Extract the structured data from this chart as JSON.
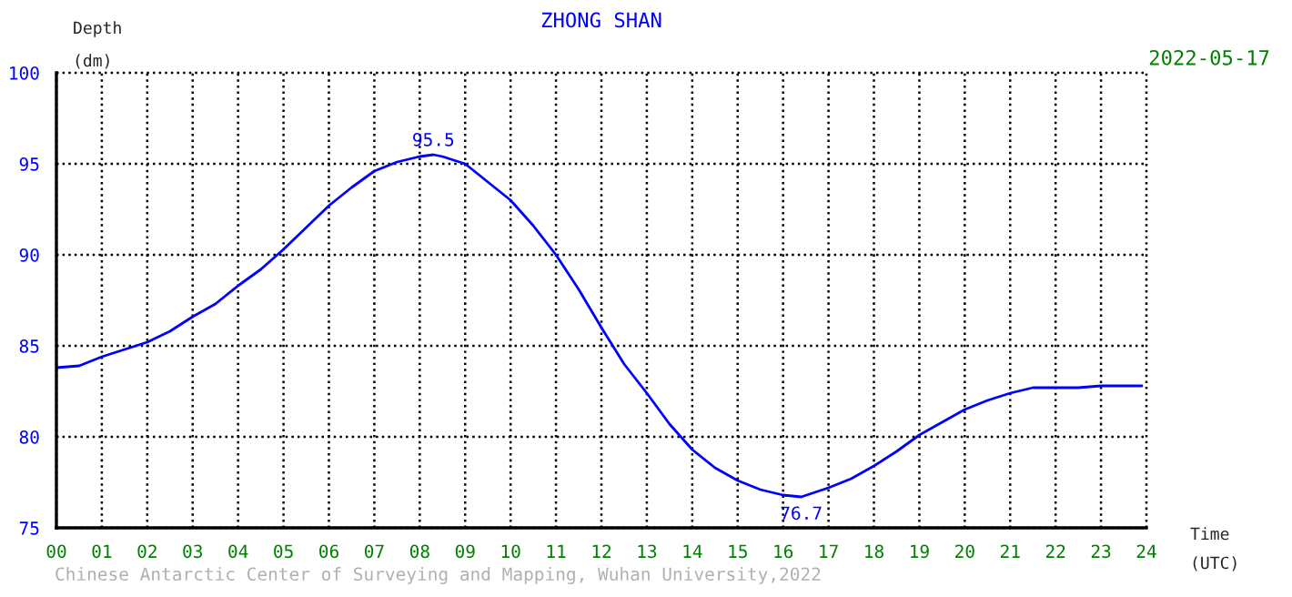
{
  "chart_data": {
    "type": "line",
    "title": "ZHONG SHAN",
    "subtitle": "2022-05-17",
    "xlabel": "Time\n(UTC)",
    "ylabel": "Depth\n(dm)",
    "x": [
      0,
      0.5,
      1,
      1.5,
      2,
      2.5,
      3,
      3.5,
      4,
      4.5,
      5,
      5.5,
      6,
      6.5,
      7,
      7.5,
      8,
      8.3,
      8.5,
      9,
      9.5,
      10,
      10.5,
      11,
      11.5,
      12,
      12.5,
      13,
      13.5,
      14,
      14.5,
      15,
      15.5,
      16,
      16.4,
      17,
      17.5,
      18,
      18.5,
      19,
      19.5,
      20,
      20.5,
      21,
      21.5,
      22,
      22.5,
      23,
      23.5,
      23.9
    ],
    "series": [
      {
        "color": "#0000ff",
        "values": [
          83.8,
          83.9,
          84.4,
          84.8,
          85.2,
          85.8,
          86.6,
          87.3,
          88.3,
          89.2,
          90.3,
          91.5,
          92.7,
          93.7,
          94.6,
          95.1,
          95.4,
          95.5,
          95.4,
          95.0,
          94.0,
          93.0,
          91.6,
          90.0,
          88.1,
          86.0,
          84.0,
          82.4,
          80.7,
          79.3,
          78.3,
          77.6,
          77.1,
          76.8,
          76.7,
          77.2,
          77.7,
          78.4,
          79.2,
          80.1,
          80.8,
          81.5,
          82.0,
          82.4,
          82.7,
          82.7,
          82.7,
          82.8,
          82.8,
          82.8
        ]
      }
    ],
    "xlim": [
      0,
      24
    ],
    "ylim": [
      75,
      100
    ],
    "xticks": [
      {
        "value": 0,
        "label": "00"
      },
      {
        "value": 1,
        "label": "01"
      },
      {
        "value": 2,
        "label": "02"
      },
      {
        "value": 3,
        "label": "03"
      },
      {
        "value": 4,
        "label": "04"
      },
      {
        "value": 5,
        "label": "05"
      },
      {
        "value": 6,
        "label": "06"
      },
      {
        "value": 7,
        "label": "07"
      },
      {
        "value": 8,
        "label": "08"
      },
      {
        "value": 9,
        "label": "09"
      },
      {
        "value": 10,
        "label": "10"
      },
      {
        "value": 11,
        "label": "11"
      },
      {
        "value": 12,
        "label": "12"
      },
      {
        "value": 13,
        "label": "13"
      },
      {
        "value": 14,
        "label": "14"
      },
      {
        "value": 15,
        "label": "15"
      },
      {
        "value": 16,
        "label": "16"
      },
      {
        "value": 17,
        "label": "17"
      },
      {
        "value": 18,
        "label": "18"
      },
      {
        "value": 19,
        "label": "19"
      },
      {
        "value": 20,
        "label": "20"
      },
      {
        "value": 21,
        "label": "21"
      },
      {
        "value": 22,
        "label": "22"
      },
      {
        "value": 23,
        "label": "23"
      },
      {
        "value": 24,
        "label": "24"
      }
    ],
    "yticks": [
      75,
      80,
      85,
      90,
      95,
      100
    ],
    "grid": true,
    "line_style": "solid",
    "marker": "none",
    "annotations": [
      {
        "text": "95.5",
        "x": 8.3,
        "y": 95.5
      },
      {
        "text": "76.7",
        "x": 16.4,
        "y": 76.7
      },
      "Chinese Antarctic Center of Surveying and Mapping, Wuhan University,2022"
    ]
  }
}
